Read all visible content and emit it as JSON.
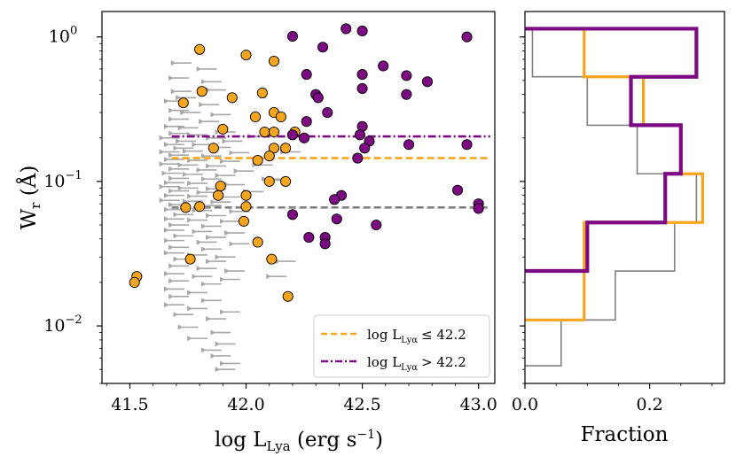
{
  "chart_data": [
    {
      "type": "scatter",
      "panel": "left",
      "xlabel": "log L_Lya (erg s^-1)",
      "ylabel": "W_r (Å)",
      "xlim": [
        41.38,
        43.07
      ],
      "ylim": [
        0.004,
        1.5
      ],
      "yscale": "log",
      "x_ticks": [
        41.5,
        42.0,
        42.5,
        43.0
      ],
      "x_tick_labels": [
        "41.5",
        "42.0",
        "42.5",
        "43.0"
      ],
      "y_ticks": [
        0.01,
        0.1,
        1.0
      ],
      "y_tick_labels": [
        "10^-2",
        "10^-1",
        "10^0"
      ],
      "upper_limits": {
        "name": "upper limits",
        "color": "#999999",
        "points": [
          [
            41.73,
            0.66
          ],
          [
            41.84,
            0.6
          ],
          [
            41.72,
            0.52
          ],
          [
            41.86,
            0.49
          ],
          [
            41.73,
            0.42
          ],
          [
            41.88,
            0.43
          ],
          [
            41.75,
            0.38
          ],
          [
            41.7,
            0.36
          ],
          [
            41.85,
            0.34
          ],
          [
            41.72,
            0.31
          ],
          [
            41.77,
            0.3
          ],
          [
            41.9,
            0.29
          ],
          [
            41.72,
            0.27
          ],
          [
            41.85,
            0.26
          ],
          [
            41.7,
            0.24
          ],
          [
            41.76,
            0.235
          ],
          [
            41.92,
            0.22
          ],
          [
            41.72,
            0.215
          ],
          [
            41.8,
            0.21
          ],
          [
            41.68,
            0.2
          ],
          [
            41.88,
            0.2
          ],
          [
            41.75,
            0.19
          ],
          [
            41.95,
            0.19
          ],
          [
            41.7,
            0.18
          ],
          [
            41.82,
            0.18
          ],
          [
            41.74,
            0.17
          ],
          [
            41.9,
            0.172
          ],
          [
            41.68,
            0.16
          ],
          [
            41.78,
            0.162
          ],
          [
            41.98,
            0.158
          ],
          [
            41.72,
            0.152
          ],
          [
            41.86,
            0.15
          ],
          [
            41.7,
            0.142
          ],
          [
            41.8,
            0.14
          ],
          [
            41.94,
            0.138
          ],
          [
            41.68,
            0.132
          ],
          [
            41.76,
            0.13
          ],
          [
            41.88,
            0.128
          ],
          [
            42.08,
            0.13
          ],
          [
            41.72,
            0.122
          ],
          [
            41.84,
            0.12
          ],
          [
            42.0,
            0.118
          ],
          [
            41.69,
            0.114
          ],
          [
            41.78,
            0.112
          ],
          [
            41.92,
            0.11
          ],
          [
            41.72,
            0.105
          ],
          [
            41.86,
            0.104
          ],
          [
            42.12,
            0.104
          ],
          [
            41.7,
            0.098
          ],
          [
            41.8,
            0.097
          ],
          [
            41.96,
            0.095
          ],
          [
            41.68,
            0.092
          ],
          [
            41.76,
            0.09
          ],
          [
            41.88,
            0.089
          ],
          [
            41.72,
            0.086
          ],
          [
            41.84,
            0.084
          ],
          [
            42.04,
            0.085
          ],
          [
            41.7,
            0.08
          ],
          [
            41.8,
            0.079
          ],
          [
            41.94,
            0.078
          ],
          [
            41.68,
            0.074
          ],
          [
            41.78,
            0.073
          ],
          [
            41.9,
            0.072
          ],
          [
            41.72,
            0.069
          ],
          [
            41.86,
            0.068
          ],
          [
            41.7,
            0.064
          ],
          [
            41.82,
            0.063
          ],
          [
            41.98,
            0.062
          ],
          [
            41.74,
            0.059
          ],
          [
            41.88,
            0.058
          ],
          [
            41.7,
            0.055
          ],
          [
            41.8,
            0.054
          ],
          [
            41.94,
            0.053
          ],
          [
            41.72,
            0.05
          ],
          [
            41.86,
            0.049
          ],
          [
            41.7,
            0.046
          ],
          [
            41.82,
            0.045
          ],
          [
            41.96,
            0.044
          ],
          [
            41.74,
            0.042
          ],
          [
            41.88,
            0.041
          ],
          [
            41.7,
            0.039
          ],
          [
            41.84,
            0.038
          ],
          [
            41.98,
            0.037
          ],
          [
            41.72,
            0.035
          ],
          [
            41.86,
            0.034
          ],
          [
            41.7,
            0.032
          ],
          [
            41.8,
            0.031
          ],
          [
            41.92,
            0.03
          ],
          [
            41.74,
            0.029
          ],
          [
            41.88,
            0.028
          ],
          [
            41.72,
            0.026
          ],
          [
            41.84,
            0.025
          ],
          [
            41.96,
            0.024
          ],
          [
            41.7,
            0.023
          ],
          [
            41.82,
            0.022
          ],
          [
            41.94,
            0.021
          ],
          [
            41.72,
            0.0205
          ],
          [
            41.86,
            0.0195
          ],
          [
            41.7,
            0.018
          ],
          [
            41.8,
            0.017
          ],
          [
            41.72,
            0.016
          ],
          [
            41.86,
            0.015
          ],
          [
            41.7,
            0.014
          ],
          [
            41.8,
            0.0132
          ],
          [
            41.94,
            0.0125
          ],
          [
            41.74,
            0.012
          ],
          [
            41.88,
            0.0112
          ],
          [
            41.76,
            0.0098
          ],
          [
            41.9,
            0.009
          ],
          [
            41.8,
            0.0082
          ],
          [
            41.92,
            0.0075
          ],
          [
            41.86,
            0.0068
          ],
          [
            41.9,
            0.0062
          ],
          [
            41.94,
            0.0055
          ],
          [
            41.92,
            0.005
          ],
          [
            42.16,
            0.102
          ],
          [
            42.2,
            0.16
          ],
          [
            42.06,
            0.205
          ],
          [
            42.18,
            0.028
          ],
          [
            42.14,
            0.022
          ]
        ]
      },
      "series": [
        {
          "name": "log L_Lyα ≤ 42.2",
          "color": "#f8a51e",
          "points": [
            [
              41.8,
              0.82
            ],
            [
              42.0,
              0.75
            ],
            [
              42.12,
              0.68
            ],
            [
              41.81,
              0.42
            ],
            [
              41.94,
              0.38
            ],
            [
              42.07,
              0.41
            ],
            [
              41.73,
              0.35
            ],
            [
              42.04,
              0.28
            ],
            [
              42.12,
              0.3
            ],
            [
              42.15,
              0.28
            ],
            [
              41.9,
              0.23
            ],
            [
              42.08,
              0.22
            ],
            [
              42.12,
              0.22
            ],
            [
              42.21,
              0.22
            ],
            [
              42.12,
              0.17
            ],
            [
              42.17,
              0.17
            ],
            [
              41.86,
              0.17
            ],
            [
              42.05,
              0.14
            ],
            [
              42.1,
              0.15
            ],
            [
              41.89,
              0.093
            ],
            [
              42.1,
              0.1
            ],
            [
              42.17,
              0.1
            ],
            [
              41.88,
              0.08
            ],
            [
              42.0,
              0.08
            ],
            [
              41.74,
              0.066
            ],
            [
              41.8,
              0.067
            ],
            [
              42.0,
              0.067
            ],
            [
              41.99,
              0.053
            ],
            [
              42.05,
              0.038
            ],
            [
              41.76,
              0.029
            ],
            [
              42.11,
              0.029
            ],
            [
              42.18,
              0.016
            ],
            [
              41.53,
              0.022
            ],
            [
              41.52,
              0.02
            ]
          ]
        },
        {
          "name": "log L_Lyα > 42.2",
          "color": "#7d0a82",
          "points": [
            [
              42.43,
              1.14
            ],
            [
              42.5,
              1.1
            ],
            [
              42.2,
              1.01
            ],
            [
              42.95,
              1.0
            ],
            [
              42.33,
              0.85
            ],
            [
              42.59,
              0.63
            ],
            [
              42.26,
              0.55
            ],
            [
              42.5,
              0.55
            ],
            [
              42.69,
              0.54
            ],
            [
              42.78,
              0.49
            ],
            [
              42.5,
              0.44
            ],
            [
              42.3,
              0.4
            ],
            [
              42.31,
              0.38
            ],
            [
              42.69,
              0.4
            ],
            [
              42.35,
              0.3
            ],
            [
              42.26,
              0.26
            ],
            [
              42.5,
              0.24
            ],
            [
              42.2,
              0.21
            ],
            [
              42.25,
              0.2
            ],
            [
              42.49,
              0.21
            ],
            [
              42.53,
              0.19
            ],
            [
              42.7,
              0.18
            ],
            [
              42.95,
              0.18
            ],
            [
              42.51,
              0.17
            ],
            [
              42.48,
              0.145
            ],
            [
              42.91,
              0.087
            ],
            [
              42.41,
              0.08
            ],
            [
              42.38,
              0.075
            ],
            [
              43.0,
              0.07
            ],
            [
              43.0,
              0.065
            ],
            [
              42.2,
              0.059
            ],
            [
              42.39,
              0.055
            ],
            [
              42.56,
              0.05
            ],
            [
              42.27,
              0.041
            ],
            [
              42.34,
              0.041
            ],
            [
              42.34,
              0.037
            ]
          ]
        }
      ],
      "reference_lines": [
        {
          "name": "median low",
          "color": "#f8a51e",
          "style": "dashed",
          "y": 0.145
        },
        {
          "name": "median high",
          "color": "#7d0a82",
          "style": "dashdot",
          "y": 0.205
        },
        {
          "name": "median limits",
          "color": "#808080",
          "style": "dashed",
          "y": 0.066
        }
      ],
      "legend": {
        "placement": "lower-right",
        "entries": [
          {
            "label": "log L_Lyα ≤ 42.2",
            "label_main": "log L",
            "label_sub": "Lyα",
            "label_rel": "≤ 42.2",
            "color": "#f8a51e",
            "style": "dashed"
          },
          {
            "label": "log L_Lyα > 42.2",
            "label_main": "log L",
            "label_sub": "Lyα",
            "label_rel": "> 42.2",
            "color": "#7d0a82",
            "style": "dashdot"
          }
        ]
      }
    },
    {
      "type": "histogram",
      "panel": "right",
      "orientation": "horizontal",
      "xlabel": "Fraction",
      "xlim": [
        0,
        0.32
      ],
      "x_ticks": [
        0.0,
        0.2
      ],
      "x_tick_labels": [
        "0.0",
        "0.2"
      ],
      "ylim": [
        0.004,
        1.5
      ],
      "yscale": "log",
      "series": [
        {
          "name": "upper limits",
          "color": "#808080",
          "bins": [
            {
              "lo": 0.0053,
              "hi": 0.011,
              "value": 0.058
            },
            {
              "lo": 0.011,
              "hi": 0.024,
              "value": 0.145
            },
            {
              "lo": 0.024,
              "hi": 0.052,
              "value": 0.24
            },
            {
              "lo": 0.052,
              "hi": 0.113,
              "value": 0.275
            },
            {
              "lo": 0.113,
              "hi": 0.245,
              "value": 0.18
            },
            {
              "lo": 0.245,
              "hi": 0.53,
              "value": 0.1
            },
            {
              "lo": 0.53,
              "hi": 1.14,
              "value": 0.012
            }
          ]
        },
        {
          "name": "log L_Lyα ≤ 42.2",
          "color": "#f8a51e",
          "bins": [
            {
              "lo": 0.011,
              "hi": 0.024,
              "value": 0.095
            },
            {
              "lo": 0.024,
              "hi": 0.052,
              "value": 0.095
            },
            {
              "lo": 0.052,
              "hi": 0.113,
              "value": 0.285
            },
            {
              "lo": 0.113,
              "hi": 0.245,
              "value": 0.25
            },
            {
              "lo": 0.245,
              "hi": 0.53,
              "value": 0.19
            },
            {
              "lo": 0.53,
              "hi": 1.14,
              "value": 0.095
            }
          ]
        },
        {
          "name": "log L_Lyα > 42.2",
          "color": "#7d0a82",
          "bins": [
            {
              "lo": 0.024,
              "hi": 0.052,
              "value": 0.1
            },
            {
              "lo": 0.052,
              "hi": 0.113,
              "value": 0.225
            },
            {
              "lo": 0.113,
              "hi": 0.245,
              "value": 0.25
            },
            {
              "lo": 0.245,
              "hi": 0.53,
              "value": 0.17
            },
            {
              "lo": 0.53,
              "hi": 1.14,
              "value": 0.275
            }
          ]
        }
      ]
    }
  ]
}
